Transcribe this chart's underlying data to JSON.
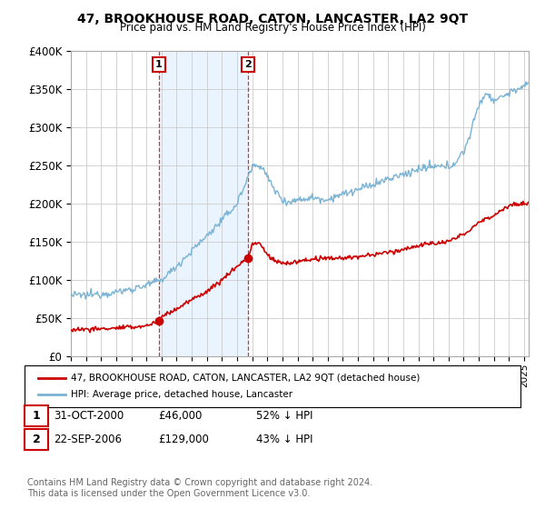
{
  "title": "47, BROOKHOUSE ROAD, CATON, LANCASTER, LA2 9QT",
  "subtitle": "Price paid vs. HM Land Registry's House Price Index (HPI)",
  "ylim": [
    0,
    400000
  ],
  "yticks": [
    0,
    50000,
    100000,
    150000,
    200000,
    250000,
    300000,
    350000,
    400000
  ],
  "ytick_labels": [
    "£0",
    "£50K",
    "£100K",
    "£150K",
    "£200K",
    "£250K",
    "£300K",
    "£350K",
    "£400K"
  ],
  "xlim_start": 1995.0,
  "xlim_end": 2025.3,
  "red_color": "#cc0000",
  "blue_color": "#7ab3d4",
  "shade_color": "#ddeeff",
  "marker1_date": 2000.83,
  "marker1_price": 46000,
  "marker2_date": 2006.72,
  "marker2_price": 129000,
  "legend_line1": "47, BROOKHOUSE ROAD, CATON, LANCASTER, LA2 9QT (detached house)",
  "legend_line2": "HPI: Average price, detached house, Lancaster",
  "footnote": "Contains HM Land Registry data © Crown copyright and database right 2024.\nThis data is licensed under the Open Government Licence v3.0.",
  "grid_color": "#cccccc",
  "background_color": "#ffffff"
}
